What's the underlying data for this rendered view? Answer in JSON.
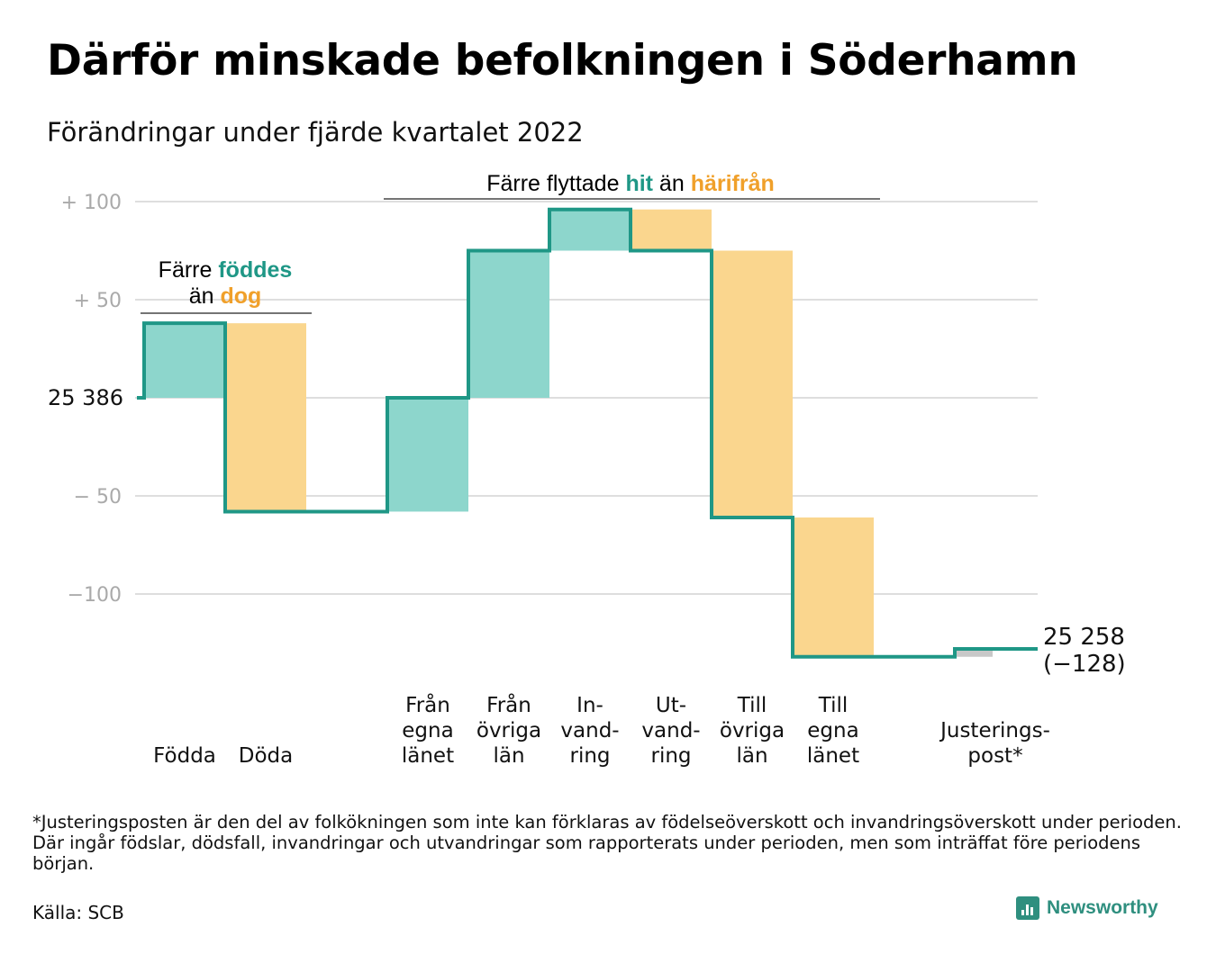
{
  "header": {
    "title": "Därför minskade befolkningen i Söderhamn",
    "subtitle": "Förändringar under fjärde kvartalet 2022"
  },
  "annotations": {
    "births": {
      "line1_a": "Färre ",
      "line1_b": "föddes",
      "line2_a": "än ",
      "line2_b": "dog"
    },
    "moves": {
      "a": "Färre flyttade ",
      "b": "hit",
      "c": " än ",
      "d": "härifrån"
    }
  },
  "labels": {
    "start_value": "25 386",
    "end_value": "25 258",
    "end_change": "(−128)"
  },
  "colors": {
    "in": "#8dd6cc",
    "out": "#fad68e",
    "line": "#1f9786",
    "adjust": "#c8c8c8",
    "grid": "#dedede",
    "tick_text": "#aaaaaa",
    "accent_in": "#1f9786",
    "accent_out": "#f0a02a"
  },
  "chart_data": {
    "type": "waterfall",
    "start_value": 25386,
    "end_value": 25258,
    "y_ticks": [
      {
        "value": 100,
        "label": "+ 100"
      },
      {
        "value": 50,
        "label": "+ 50"
      },
      {
        "value": 0,
        "label": "25 386"
      },
      {
        "value": -50,
        "label": "− 50"
      },
      {
        "value": -100,
        "label": "−100"
      }
    ],
    "ylim": [
      -135,
      110
    ],
    "grid": true,
    "steps": [
      {
        "label": [
          "",
          "",
          "Födda"
        ],
        "value": 38,
        "kind": "in"
      },
      {
        "label": [
          "",
          "",
          "Döda"
        ],
        "value": -96,
        "kind": "out"
      },
      {
        "label": [
          "",
          "",
          ""
        ],
        "value": 0,
        "kind": "gap"
      },
      {
        "label": [
          "Från",
          "egna",
          "länet"
        ],
        "value": 58,
        "kind": "in"
      },
      {
        "label": [
          "Från",
          "övriga",
          "län"
        ],
        "value": 75,
        "kind": "in"
      },
      {
        "label": [
          "In-",
          "vand-",
          "ring"
        ],
        "value": 21,
        "kind": "in"
      },
      {
        "label": [
          "Ut-",
          "vand-",
          "ring"
        ],
        "value": -21,
        "kind": "out"
      },
      {
        "label": [
          "Till",
          "övriga",
          "län"
        ],
        "value": -136,
        "kind": "out"
      },
      {
        "label": [
          "Till",
          "egna",
          "länet"
        ],
        "value": -71,
        "kind": "out"
      },
      {
        "label": [
          "",
          "",
          ""
        ],
        "value": 0,
        "kind": "gap"
      },
      {
        "label": [
          "",
          "Justerings-",
          "post*"
        ],
        "value": 4,
        "kind": "adjust"
      }
    ]
  },
  "footer": {
    "footnote": "*Justeringsposten är den del av folkökningen som inte kan förklaras av födelseöverskott och invandringsöverskott under perioden. Där ingår födslar, dödsfall, invandringar och utvandringar som rapporterats under perioden, men som inträffat före periodens början.",
    "source": "Källa: SCB",
    "brand": "Newsworthy"
  }
}
